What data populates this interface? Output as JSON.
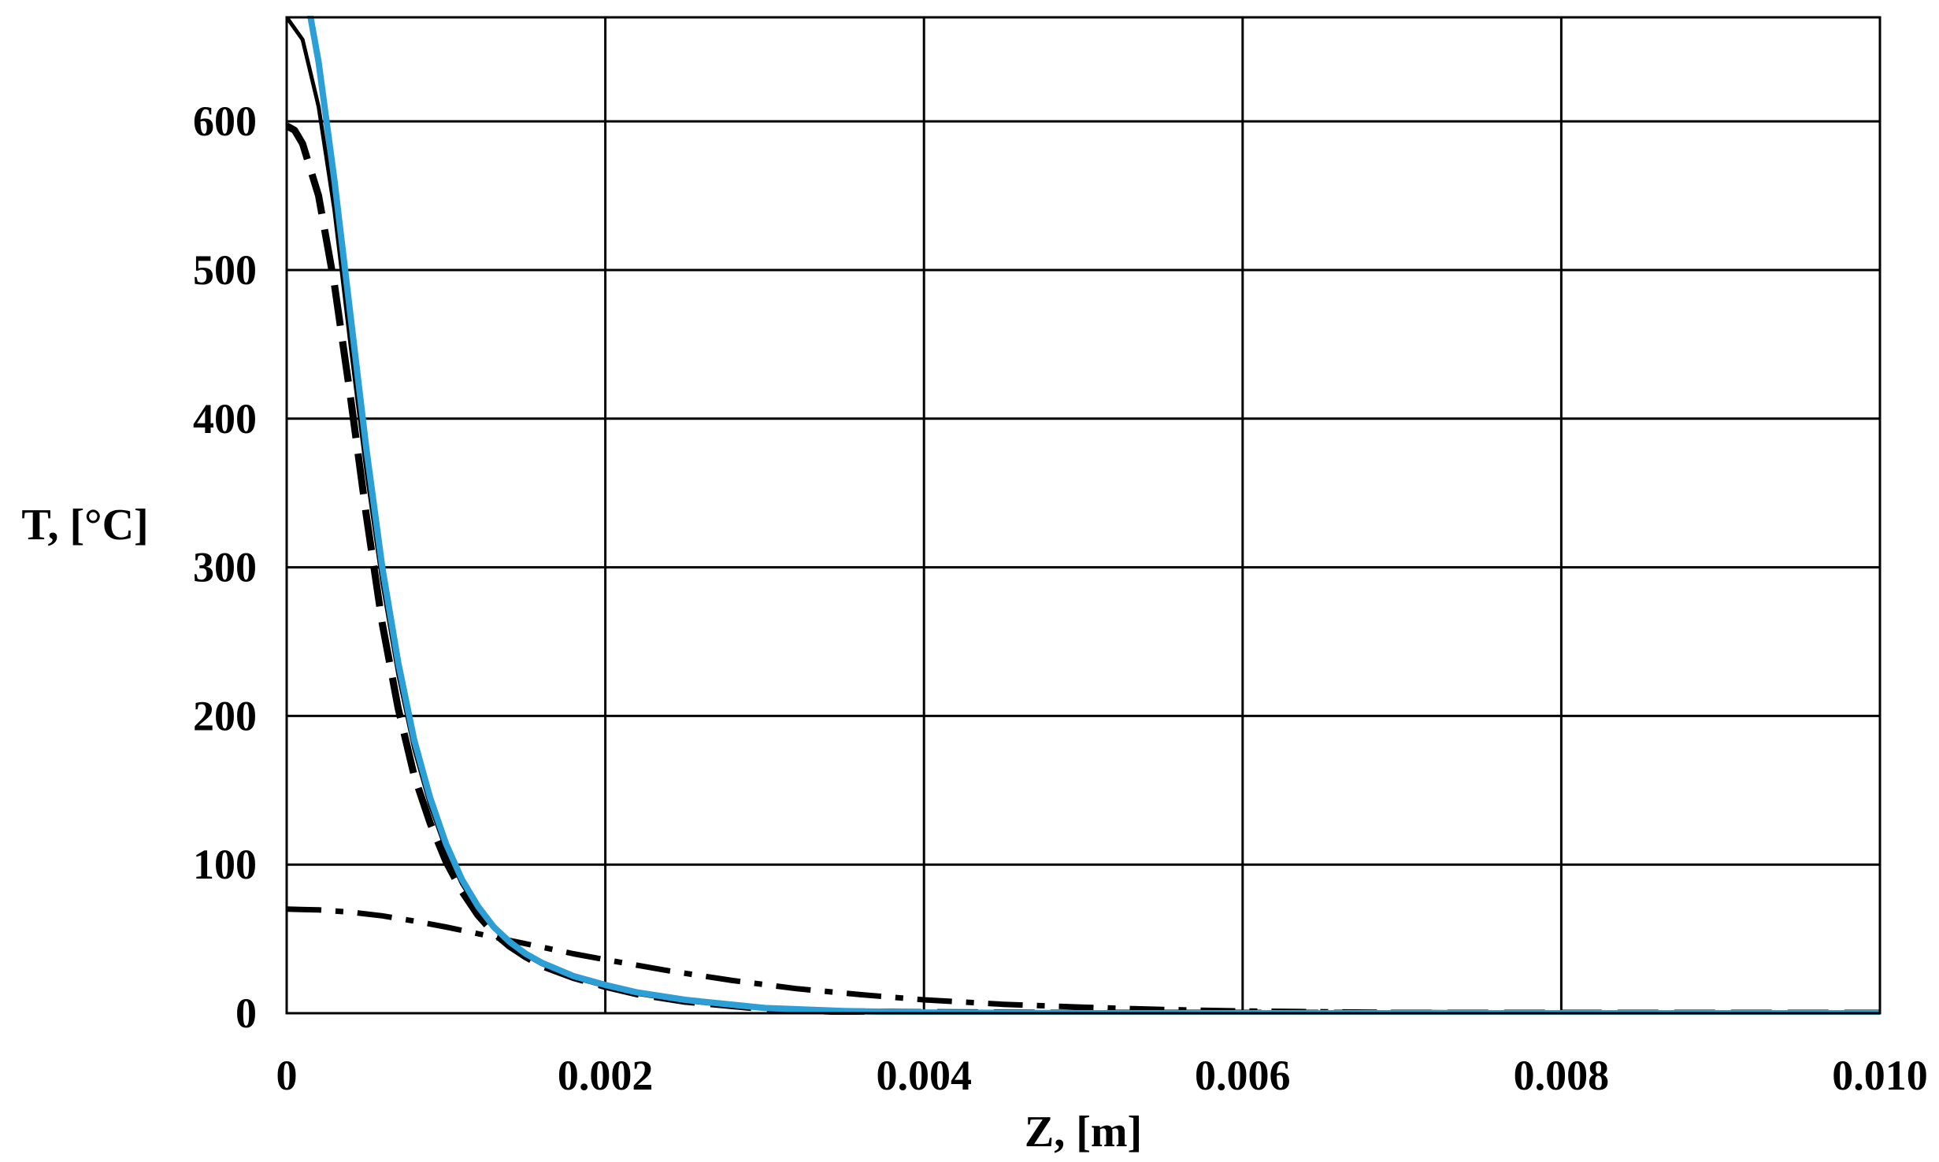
{
  "chart_data": {
    "type": "line",
    "title": "",
    "xlabel": "Z, [m]",
    "ylabel": "T, [°C]",
    "xlim": [
      0,
      0.01
    ],
    "ylim": [
      0,
      670
    ],
    "grid": true,
    "x_ticks": [
      0,
      0.002,
      0.004,
      0.006,
      0.008,
      0.01
    ],
    "x_tick_labels": [
      "0",
      "0.002",
      "0.004",
      "0.006",
      "0.008",
      "0.010"
    ],
    "y_ticks": [
      0,
      100,
      200,
      300,
      400,
      500,
      600
    ],
    "y_tick_labels": [
      "0",
      "100",
      "200",
      "300",
      "400",
      "500",
      "600"
    ],
    "series": [
      {
        "style": "solid",
        "color": "#000000",
        "x": [
          0,
          0.0001,
          0.0002,
          0.0003,
          0.0004,
          0.0005,
          0.0006,
          0.0007,
          0.0008,
          0.0009,
          0.001,
          0.0011,
          0.0012,
          0.0013,
          0.0014,
          0.0015,
          0.0016,
          0.0018,
          0.002,
          0.0022,
          0.0025,
          0.003,
          0.0035,
          0.004,
          0.005,
          0.006,
          0.007,
          0.008,
          0.009,
          0.01
        ],
        "y": [
          670,
          655,
          610,
          540,
          450,
          365,
          290,
          228,
          178,
          140,
          110,
          87,
          70,
          57,
          47,
          39,
          33,
          24,
          18,
          13,
          8,
          3,
          1,
          0.5,
          0,
          0,
          0,
          0,
          0,
          0
        ]
      },
      {
        "style": "dash",
        "color": "#000000",
        "x": [
          0,
          5e-05,
          0.0001,
          0.0002,
          0.0003,
          0.0004,
          0.0005,
          0.0006,
          0.0007,
          0.0008,
          0.0009,
          0.001,
          0.0011,
          0.0012,
          0.0013,
          0.0014,
          0.0015,
          0.0016,
          0.0018,
          0.002,
          0.0022,
          0.0025,
          0.003,
          0.0035,
          0.004,
          0.005,
          0.006,
          0.007,
          0.008,
          0.009,
          0.01
        ],
        "y": [
          597,
          594,
          585,
          550,
          490,
          415,
          335,
          262,
          205,
          160,
          128,
          102,
          82,
          66,
          54,
          45,
          38,
          32,
          24,
          18,
          13,
          8,
          3,
          1,
          0.5,
          0,
          0,
          0,
          0,
          0,
          0
        ]
      },
      {
        "style": "dashdot",
        "color": "#000000",
        "x": [
          0,
          0.0002,
          0.0004,
          0.0006,
          0.0008,
          0.001,
          0.0012,
          0.0014,
          0.0016,
          0.0018,
          0.002,
          0.0024,
          0.0028,
          0.0032,
          0.0036,
          0.004,
          0.0045,
          0.005,
          0.0055,
          0.006,
          0.007,
          0.008,
          0.009,
          0.01
        ],
        "y": [
          70,
          69.5,
          68,
          65.5,
          62,
          58,
          53.5,
          49,
          44.5,
          40,
          36,
          28.5,
          22,
          16.5,
          12.5,
          9,
          6,
          4,
          2.5,
          1.5,
          0.5,
          0,
          0,
          0
        ]
      },
      {
        "style": "solid",
        "color": "#2b9fd6",
        "x": [
          0,
          0.0001,
          0.0002,
          0.0003,
          0.0004,
          0.0005,
          0.0006,
          0.0007,
          0.0008,
          0.0009,
          0.001,
          0.0011,
          0.0012,
          0.0013,
          0.0014,
          0.0015,
          0.0016,
          0.0018,
          0.002,
          0.0022,
          0.0025,
          0.003,
          0.0035,
          0.004,
          0.005,
          0.006,
          0.007,
          0.008,
          0.009,
          0.01
        ],
        "y": [
          720,
          700,
          640,
          560,
          470,
          380,
          300,
          236,
          184,
          145,
          114,
          90,
          72,
          58,
          48,
          40,
          34,
          25,
          19,
          14,
          9,
          3.5,
          1.5,
          0.5,
          0,
          0,
          0,
          0,
          0,
          0
        ]
      }
    ]
  }
}
